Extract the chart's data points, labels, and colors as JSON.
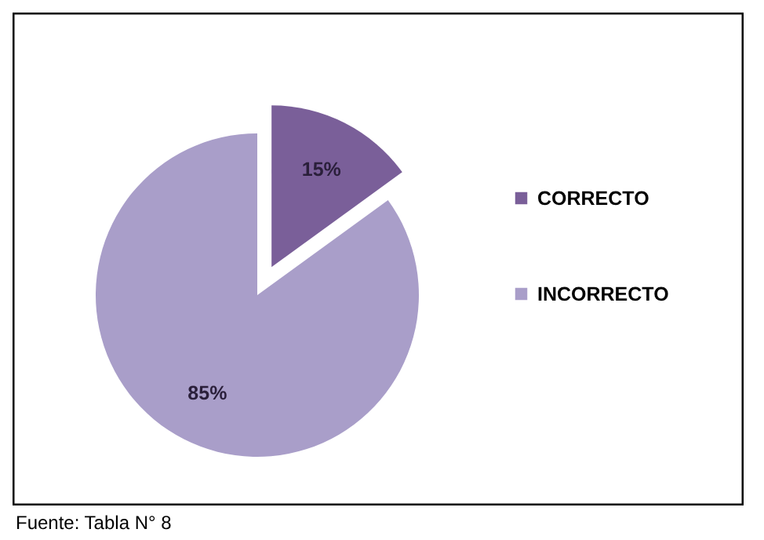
{
  "chart_data": {
    "type": "pie",
    "categories": [
      "CORRECTO",
      "INCORRECTO"
    ],
    "values": [
      15,
      85
    ],
    "colors": [
      "#7a5f99",
      "#a99ec9"
    ],
    "value_labels": [
      "15%",
      "85%"
    ],
    "legend": "right",
    "annotations": [
      "Fuente: Tabla N° 8"
    ]
  }
}
